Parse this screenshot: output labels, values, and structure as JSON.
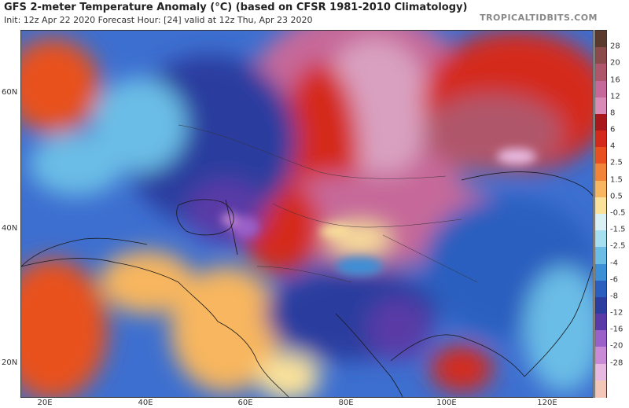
{
  "header": {
    "title": "GFS 2-meter Temperature Anomaly (°C) (based on CFSR 1981-2010 Climatology)",
    "subtitle": "Init: 12z Apr 22 2020   Forecast Hour: [24]   valid at 12z Thu, Apr 23 2020",
    "brand": "TROPICALTIDBITS.COM"
  },
  "map": {
    "lat_labels": [
      "60N",
      "40N",
      "20N"
    ],
    "lon_labels": [
      "20E",
      "40E",
      "60E",
      "80E",
      "100E",
      "120E"
    ]
  },
  "colorbar": {
    "labels": [
      "28",
      "20",
      "16",
      "12",
      "8",
      "6",
      "4",
      "2.5",
      "1.5",
      "0.5",
      "-0.5",
      "-1.5",
      "-2.5",
      "-4",
      "-6",
      "-8",
      "-12",
      "-16",
      "-20",
      "-28"
    ],
    "colors": [
      "#5b3a2e",
      "#8a4b4a",
      "#b0566b",
      "#c6699a",
      "#d98ab7",
      "#a8181a",
      "#d42a1c",
      "#e8511f",
      "#f2843a",
      "#f7b65f",
      "#fbe29a",
      "#d9f0f5",
      "#a6dff0",
      "#6bbde6",
      "#3d8fd6",
      "#2a5fbf",
      "#2b3e9f",
      "#5a3aa6",
      "#9a61c9",
      "#c98bd6",
      "#e8b9e0",
      "#f3c7b7"
    ]
  }
}
